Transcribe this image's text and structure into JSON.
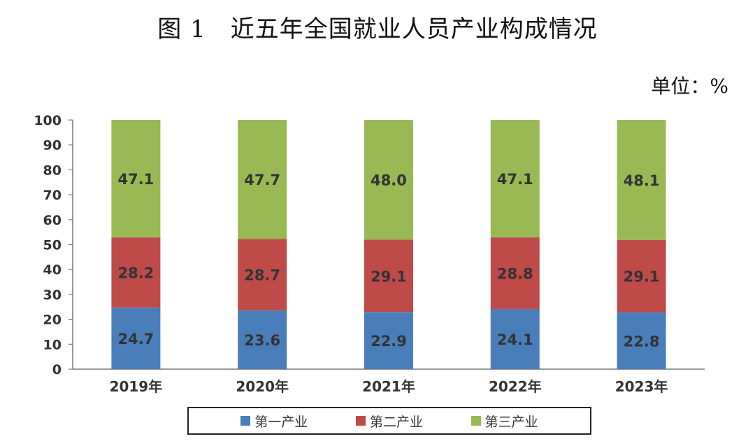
{
  "title": "图 1　近五年全国就业人员产业构成情况",
  "unit": "单位：%",
  "chart_data": {
    "type": "bar",
    "stacked": true,
    "categories": [
      "2019年",
      "2020年",
      "2021年",
      "2022年",
      "2023年"
    ],
    "series": [
      {
        "name": "第一产业",
        "color": "#4a7ebb",
        "values": [
          24.7,
          23.6,
          22.9,
          24.1,
          22.8
        ]
      },
      {
        "name": "第二产业",
        "color": "#be4b48",
        "values": [
          28.2,
          28.7,
          29.1,
          28.8,
          29.1
        ]
      },
      {
        "name": "第三产业",
        "color": "#98b954",
        "values": [
          47.1,
          47.7,
          48.0,
          47.1,
          48.1
        ]
      }
    ],
    "value_labels": [
      [
        "24.7",
        "23.6",
        "22.9",
        "24.1",
        "22.8"
      ],
      [
        "28.2",
        "28.7",
        "29.1",
        "28.8",
        "29.1"
      ],
      [
        "47.1",
        "47.7",
        "48.0",
        "47.1",
        "48.1"
      ]
    ],
    "ylim": [
      0,
      100
    ],
    "yticks": [
      "0",
      "10",
      "20",
      "30",
      "40",
      "50",
      "60",
      "70",
      "80",
      "90",
      "100"
    ],
    "grid": false,
    "legend_position": "bottom"
  }
}
